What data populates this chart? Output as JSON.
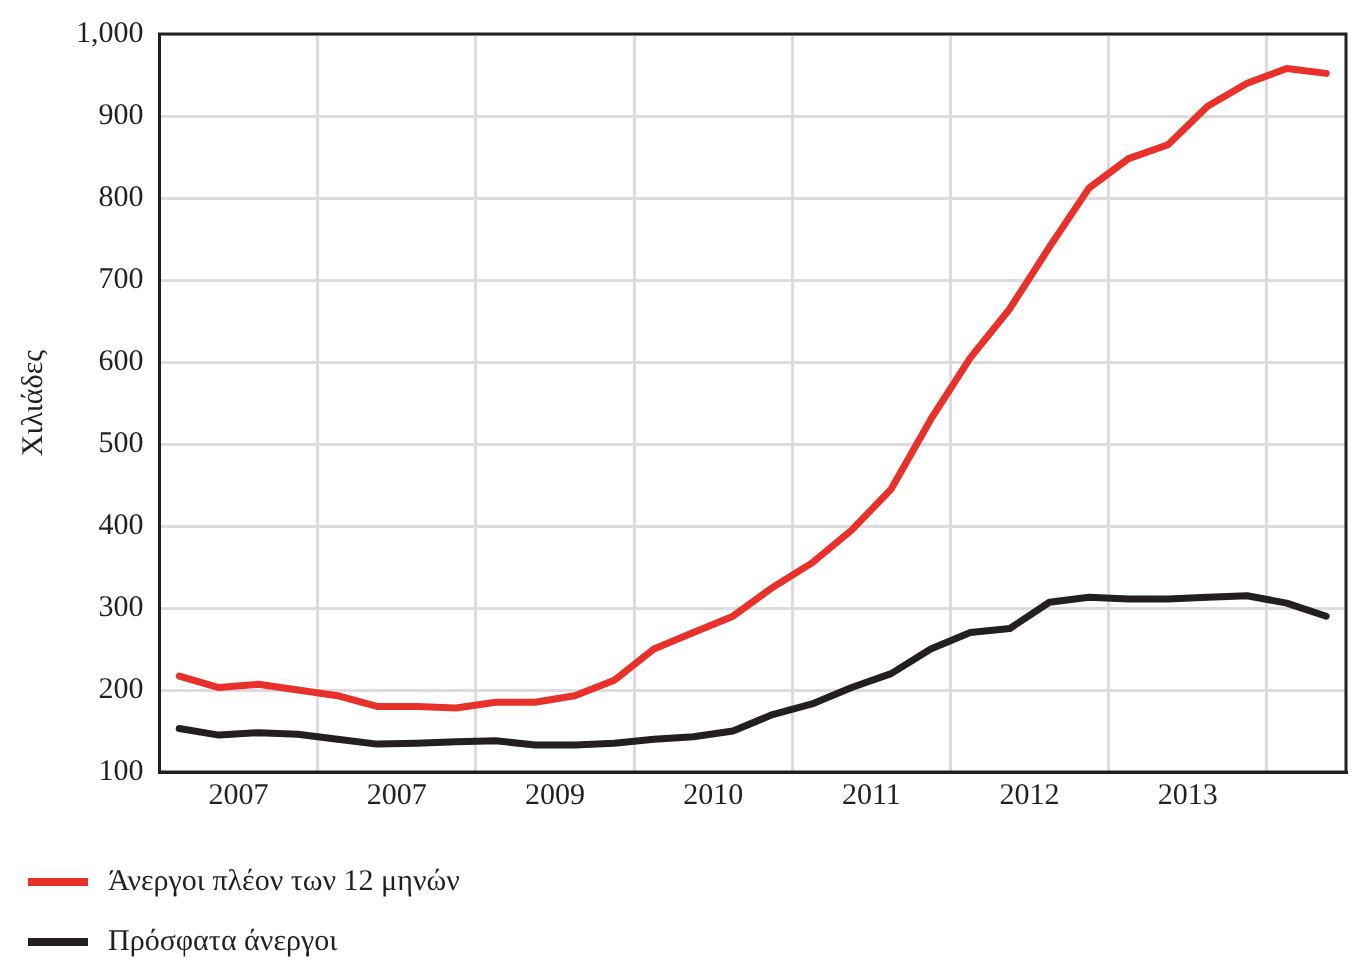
{
  "chart_data": {
    "type": "line",
    "ylabel": "Χιλιάδες",
    "x": [
      2006.125,
      2006.375,
      2006.625,
      2006.875,
      2007.125,
      2007.375,
      2007.625,
      2007.875,
      2008.125,
      2008.375,
      2008.625,
      2008.875,
      2009.125,
      2009.375,
      2009.625,
      2009.875,
      2010.125,
      2010.375,
      2010.625,
      2010.875,
      2011.125,
      2011.375,
      2011.625,
      2011.875,
      2012.125,
      2012.375,
      2012.625,
      2012.875,
      2013.125,
      2013.375
    ],
    "series": [
      {
        "name": "Άνεργοι πλέον των 12 μηνών",
        "color": "#e8312a",
        "values": [
          217,
          203,
          207,
          200,
          193,
          180,
          180,
          178,
          185,
          185,
          193,
          212,
          250,
          270,
          290,
          325,
          355,
          395,
          445,
          530,
          605,
          665,
          740,
          812,
          848,
          865,
          912,
          940,
          958,
          952
        ]
      },
      {
        "name": "Πρόσφατα άνεργοι",
        "color": "#231f20",
        "values": [
          153,
          145,
          148,
          146,
          140,
          134,
          135,
          137,
          138,
          133,
          133,
          135,
          140,
          143,
          150,
          170,
          183,
          203,
          220,
          250,
          270,
          275,
          307,
          313,
          311,
          311,
          313,
          315,
          306,
          290
        ]
      }
    ],
    "xlim": [
      2006,
      2013.5
    ],
    "xticks": [
      {
        "value": 2006.5,
        "label": "2007"
      },
      {
        "value": 2007,
        "label": null
      },
      {
        "value": 2007.5,
        "label": "2007"
      },
      {
        "value": 2008,
        "label": null
      },
      {
        "value": 2008.5,
        "label": "2009"
      },
      {
        "value": 2009,
        "label": null
      },
      {
        "value": 2009.5,
        "label": "2010"
      },
      {
        "value": 2010,
        "label": null
      },
      {
        "value": 2010.5,
        "label": "2011"
      },
      {
        "value": 2011,
        "label": null
      },
      {
        "value": 2011.5,
        "label": "2012"
      },
      {
        "value": 2012,
        "label": null
      },
      {
        "value": 2012.5,
        "label": "2013"
      },
      {
        "value": 2013,
        "label": null
      }
    ],
    "ylim": [
      100,
      1000
    ],
    "yticks": [
      {
        "value": 100,
        "label": "100"
      },
      {
        "value": 200,
        "label": "200"
      },
      {
        "value": 300,
        "label": "300"
      },
      {
        "value": 400,
        "label": "400"
      },
      {
        "value": 500,
        "label": "500"
      },
      {
        "value": 600,
        "label": "600"
      },
      {
        "value": 700,
        "label": "700"
      },
      {
        "value": 800,
        "label": "800"
      },
      {
        "value": 900,
        "label": "900"
      },
      {
        "value": 1000,
        "label": "1,000"
      }
    ],
    "grid": true,
    "legend": "bottom",
    "marker": "none",
    "line_style": "solid"
  }
}
